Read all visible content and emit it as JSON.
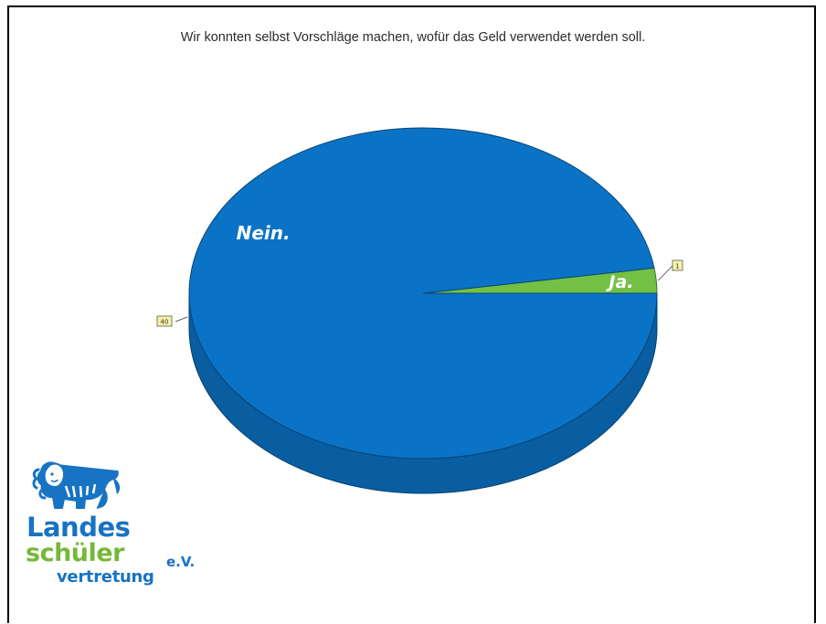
{
  "chart_data": {
    "type": "pie",
    "title": "Wir konnten selbst Vorschläge machen, wofür das Geld verwendet werden soll.",
    "categories": [
      "Ja.",
      "Nein."
    ],
    "values": [
      1,
      40
    ],
    "colors": [
      "#73c044",
      "#0b73c6"
    ],
    "data_labels": [
      "1",
      "40"
    ],
    "style": "3d"
  },
  "logo": {
    "line1": "Landes",
    "line2": "schüler",
    "line3": "vertretung",
    "suffix": "e.V.",
    "icon": "lion-icon",
    "colors": {
      "blue": "#1773c4",
      "green": "#75b83a"
    }
  }
}
